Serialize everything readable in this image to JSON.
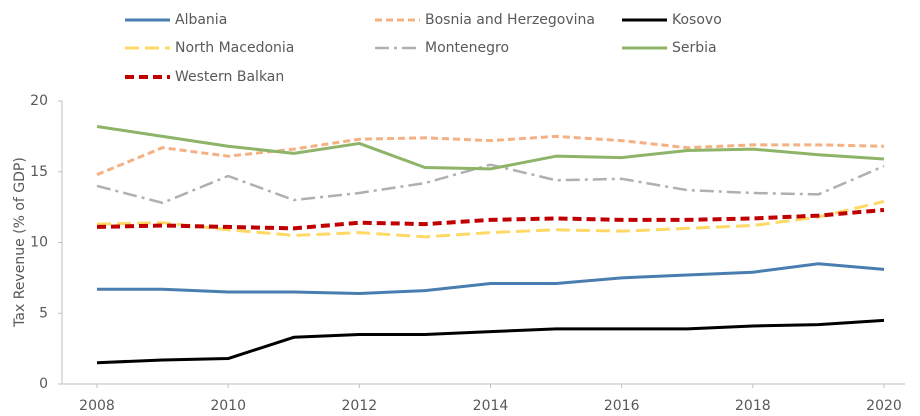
{
  "chart_data": {
    "type": "line",
    "y_label": "Tax Revenue (% of GDP)",
    "x": [
      2008,
      2009,
      2010,
      2011,
      2012,
      2013,
      2014,
      2015,
      2016,
      2017,
      2018,
      2019,
      2020
    ],
    "xlim": [
      2008,
      2020
    ],
    "xticks": [
      2008,
      2010,
      2012,
      2014,
      2016,
      2018,
      2020
    ],
    "ylim": [
      0,
      20
    ],
    "yticks": [
      0,
      5,
      10,
      15,
      20
    ],
    "legend": "top",
    "series": [
      {
        "name": "Albania",
        "color": "#4a7eb0",
        "style": "solid",
        "values": [
          6.7,
          6.7,
          6.5,
          6.5,
          6.4,
          6.6,
          7.1,
          7.1,
          7.5,
          7.7,
          7.9,
          8.5,
          8.1
        ]
      },
      {
        "name": "Bosnia and Herzegovina",
        "color": "#f4b183",
        "style": "dashed",
        "values": [
          14.8,
          16.7,
          16.1,
          16.6,
          17.3,
          17.4,
          17.2,
          17.5,
          17.2,
          16.7,
          16.9,
          16.9,
          16.8
        ]
      },
      {
        "name": "Kosovo",
        "color": "#000000",
        "style": "solid",
        "values": [
          1.5,
          1.7,
          1.8,
          3.3,
          3.5,
          3.5,
          3.7,
          3.9,
          3.9,
          3.9,
          4.1,
          4.2,
          4.5
        ]
      },
      {
        "name": "North Macedonia",
        "color": "#ffd966",
        "style": "longdash",
        "values": [
          11.3,
          11.4,
          10.9,
          10.5,
          10.7,
          10.4,
          10.7,
          10.9,
          10.8,
          11.0,
          11.2,
          11.8,
          12.9
        ]
      },
      {
        "name": "Montenegro",
        "color": "#b0b0b0",
        "style": "dashdot",
        "values": [
          14.0,
          12.8,
          14.7,
          13.0,
          13.5,
          14.2,
          15.5,
          14.4,
          14.5,
          13.7,
          13.5,
          13.4,
          15.4
        ]
      },
      {
        "name": "Serbia",
        "color": "#8db468",
        "style": "solid",
        "values": [
          18.2,
          17.5,
          16.8,
          16.3,
          17.0,
          15.3,
          15.2,
          16.1,
          16.0,
          16.5,
          16.6,
          16.2,
          15.9
        ]
      },
      {
        "name": "Western Balkan",
        "color": "#c00000",
        "style": "boldDash",
        "values": [
          11.1,
          11.2,
          11.1,
          11.0,
          11.4,
          11.3,
          11.6,
          11.7,
          11.6,
          11.6,
          11.7,
          11.9,
          12.3
        ]
      }
    ]
  }
}
